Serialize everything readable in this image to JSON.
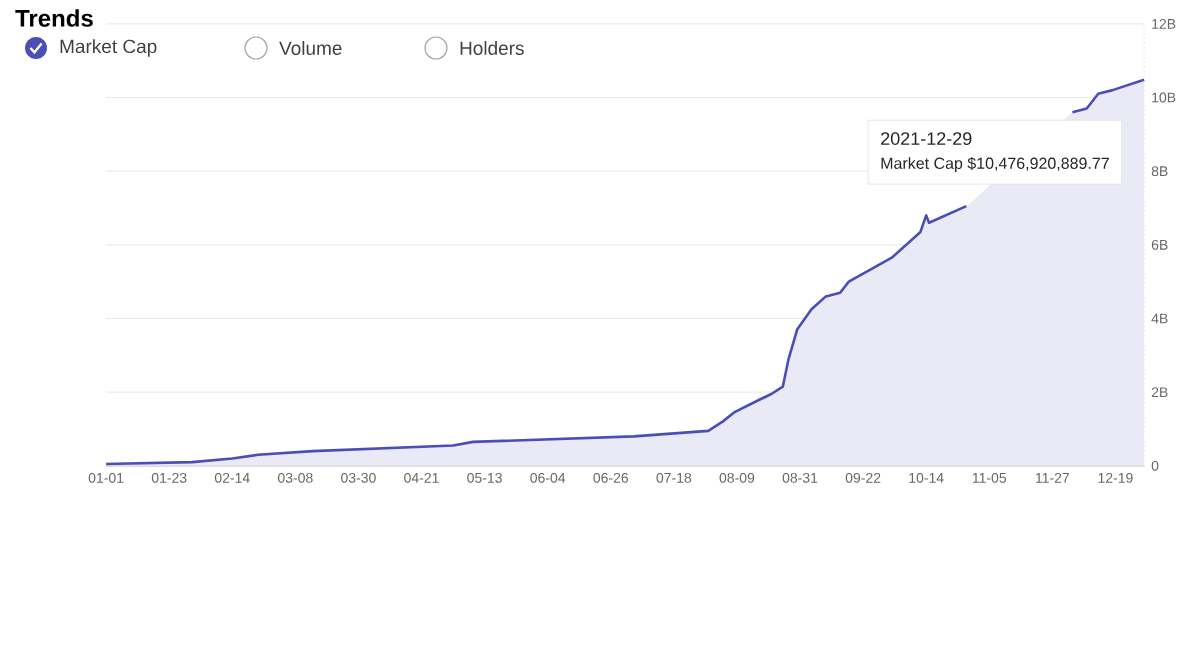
{
  "chart_data": {
    "type": "area",
    "title": "Trends",
    "x": [
      "2021-01-01",
      "2021-01-31",
      "2021-02-14",
      "2021-02-23",
      "2021-03-14",
      "2021-05-02",
      "2021-05-09",
      "2021-07-04",
      "2021-07-30",
      "2021-08-04",
      "2021-08-08",
      "2021-08-17",
      "2021-08-21",
      "2021-08-25",
      "2021-08-27",
      "2021-08-30",
      "2021-09-04",
      "2021-09-09",
      "2021-09-14",
      "2021-09-17",
      "2021-09-25",
      "2021-10-02",
      "2021-10-12",
      "2021-10-14",
      "2021-10-15",
      "2021-10-28",
      "2021-11-15",
      "2021-12-04",
      "2021-12-09",
      "2021-12-13",
      "2021-12-18",
      "2021-12-29"
    ],
    "series": [
      {
        "name": "Market Cap",
        "color": "#4a4fb5",
        "values": [
          0.05,
          0.1,
          0.2,
          0.3,
          0.4,
          0.55,
          0.65,
          0.8,
          0.95,
          1.2,
          1.45,
          1.8,
          1.95,
          2.15,
          2.9,
          3.7,
          4.25,
          4.6,
          4.7,
          5.0,
          5.35,
          5.65,
          6.35,
          6.8,
          6.6,
          7.05,
          null,
          9.6,
          9.7,
          10.1,
          10.2,
          10.48
        ]
      }
    ],
    "xlim": [
      "2021-01-01",
      "2021-12-29"
    ],
    "xticks": [
      {
        "value": "2021-01-01",
        "label": "01-01"
      },
      {
        "value": "2021-01-23",
        "label": "01-23"
      },
      {
        "value": "2021-02-14",
        "label": "02-14"
      },
      {
        "value": "2021-03-08",
        "label": "03-08"
      },
      {
        "value": "2021-03-30",
        "label": "03-30"
      },
      {
        "value": "2021-04-21",
        "label": "04-21"
      },
      {
        "value": "2021-05-13",
        "label": "05-13"
      },
      {
        "value": "2021-06-04",
        "label": "06-04"
      },
      {
        "value": "2021-06-26",
        "label": "06-26"
      },
      {
        "value": "2021-07-18",
        "label": "07-18"
      },
      {
        "value": "2021-08-09",
        "label": "08-09"
      },
      {
        "value": "2021-08-31",
        "label": "08-31"
      },
      {
        "value": "2021-09-22",
        "label": "09-22"
      },
      {
        "value": "2021-10-14",
        "label": "10-14"
      },
      {
        "value": "2021-11-05",
        "label": "11-05"
      },
      {
        "value": "2021-11-27",
        "label": "11-27"
      },
      {
        "value": "2021-12-19",
        "label": "12-19"
      }
    ],
    "ylim": [
      0,
      12
    ],
    "yticks": [
      0,
      {
        "value": 2,
        "label": "2B"
      },
      {
        "value": 4,
        "label": "4B"
      },
      {
        "value": 6,
        "label": "6B"
      },
      {
        "value": 8,
        "label": "8B"
      },
      {
        "value": 10,
        "label": "10B"
      },
      {
        "value": 12,
        "label": "12B"
      }
    ],
    "grid": "y",
    "legend": "top left",
    "marker": "none",
    "line_style": "solid",
    "annotations": [
      "Volume",
      "Holders",
      "2021-12-29",
      "Market Cap $10,476,920,889.77"
    ]
  }
}
